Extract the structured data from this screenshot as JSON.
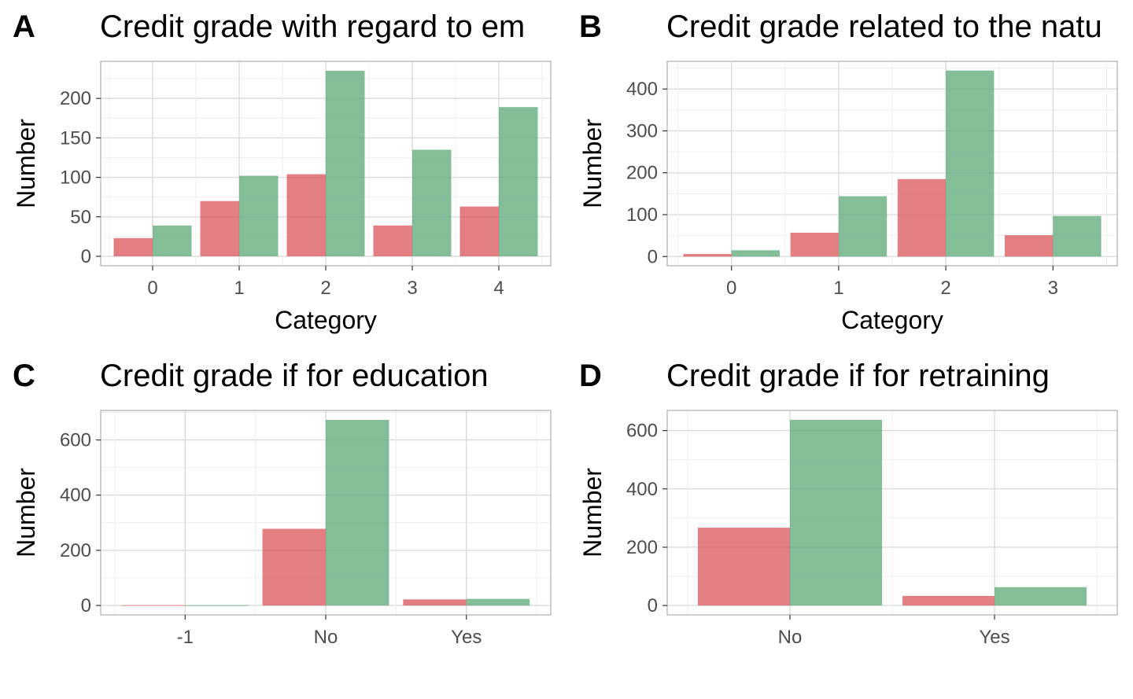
{
  "colors": {
    "bad": "#d9535a",
    "good": "#5aa877",
    "grid_major": "#d9d9d9",
    "grid_minor": "#ececec",
    "border": "#b3b3b3"
  },
  "chart_data": [
    {
      "tag": "A",
      "type": "bar",
      "title": "Credit grade with regard to em",
      "xlabel": "Category",
      "ylabel": "Number",
      "categories": [
        "0",
        "1",
        "2",
        "3",
        "4"
      ],
      "series": [
        {
          "values": [
            23,
            70,
            104,
            39,
            63
          ]
        },
        {
          "values": [
            39,
            102,
            235,
            135,
            189
          ]
        }
      ],
      "yticks": [
        "0",
        "50",
        "100",
        "150",
        "200"
      ],
      "ylim": [
        -12,
        247
      ],
      "grid": true
    },
    {
      "tag": "B",
      "type": "bar",
      "title": "Credit grade related to the natu",
      "xlabel": "Category",
      "ylabel": "Number",
      "categories": [
        "0",
        "1",
        "2",
        "3"
      ],
      "series": [
        {
          "values": [
            6,
            57,
            185,
            51
          ]
        },
        {
          "values": [
            15,
            144,
            444,
            97
          ]
        }
      ],
      "yticks": [
        "0",
        "100",
        "200",
        "300",
        "400"
      ],
      "ylim": [
        -22,
        466
      ],
      "grid": true
    },
    {
      "tag": "C",
      "type": "bar",
      "title": "Credit grade if for education",
      "xlabel": "",
      "ylabel": "Number",
      "categories": [
        "-1",
        "No",
        "Yes"
      ],
      "series": [
        {
          "values": [
            1,
            278,
            22
          ]
        },
        {
          "values": [
            1,
            673,
            24
          ]
        }
      ],
      "yticks": [
        "0",
        "200",
        "400",
        "600"
      ],
      "ylim": [
        -34,
        707
      ],
      "grid": true
    },
    {
      "tag": "D",
      "type": "bar",
      "title": "Credit grade if for retraining",
      "xlabel": "",
      "ylabel": "Number",
      "categories": [
        "No",
        "Yes"
      ],
      "series": [
        {
          "values": [
            267,
            33
          ]
        },
        {
          "values": [
            637,
            63
          ]
        }
      ],
      "yticks": [
        "0",
        "200",
        "400",
        "600"
      ],
      "ylim": [
        -32,
        669
      ],
      "grid": true
    }
  ]
}
